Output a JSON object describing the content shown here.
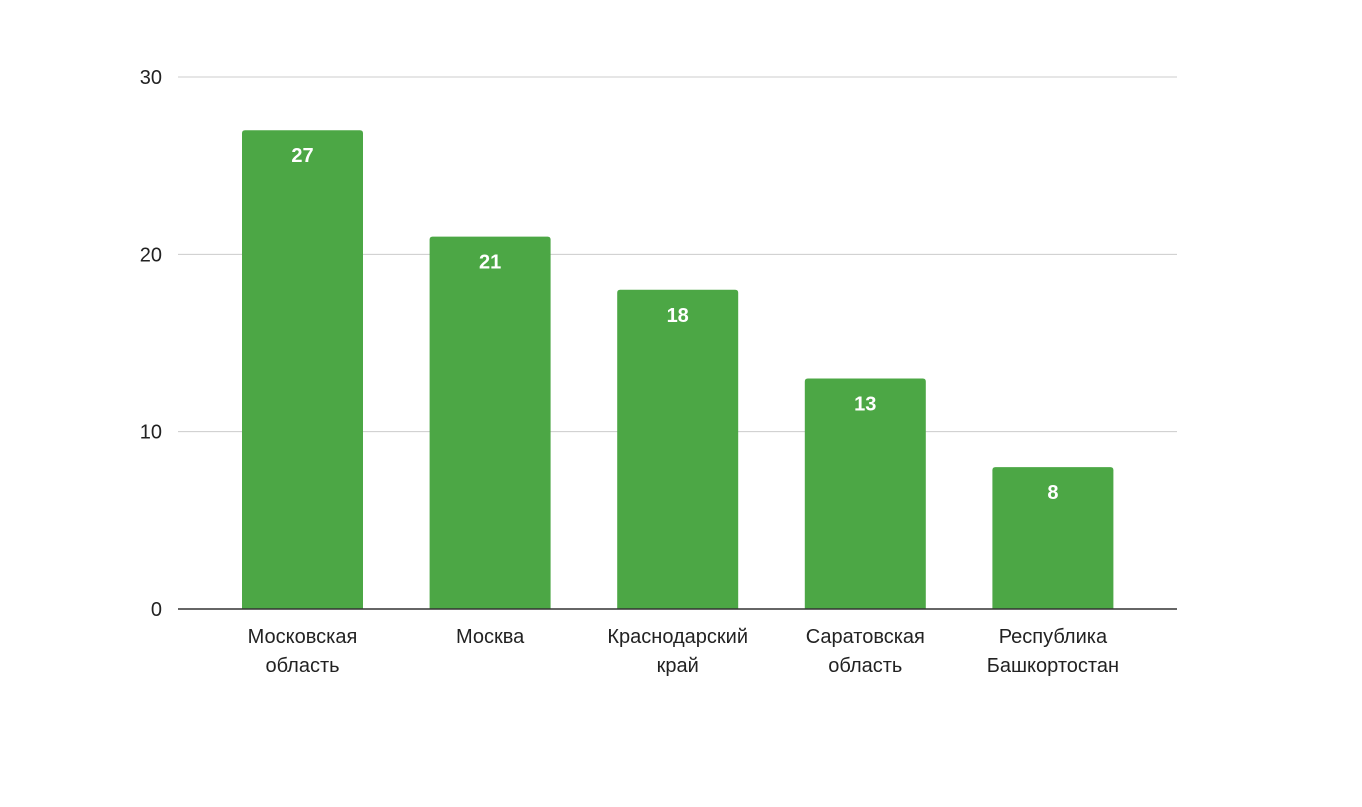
{
  "chart_data": {
    "type": "bar",
    "title": "",
    "xlabel": "",
    "ylabel": "",
    "categories": [
      [
        "Московская",
        "область"
      ],
      [
        "Москва"
      ],
      [
        "Краснодарский",
        "край"
      ],
      [
        "Саратовская",
        "область"
      ],
      [
        "Республика",
        "Башкортостан"
      ]
    ],
    "values": [
      27,
      21,
      18,
      13,
      8
    ],
    "ylim": [
      0,
      30
    ],
    "yticks": [
      0,
      10,
      20,
      30
    ],
    "grid": true,
    "legend": "none",
    "bar_color": "#4ca745",
    "data_label_color": "#ffffff"
  }
}
